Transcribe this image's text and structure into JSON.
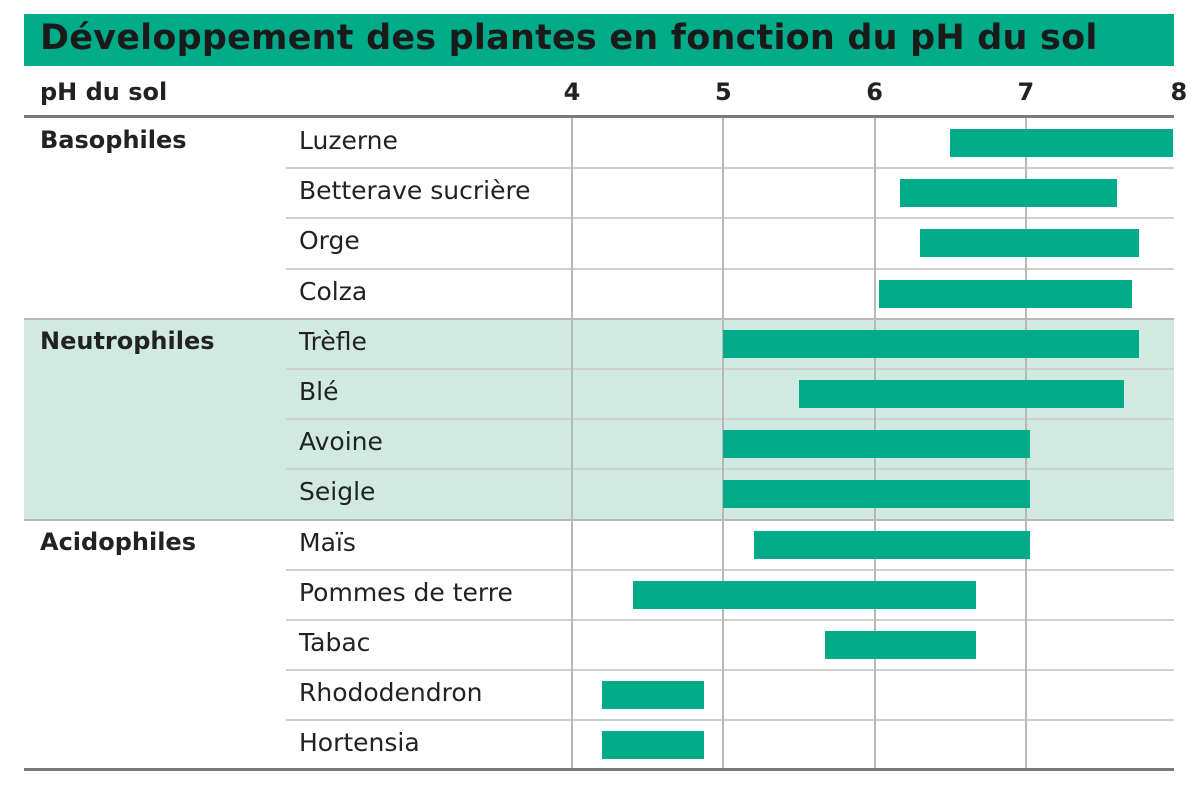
{
  "colors": {
    "accent": "#00ab8a",
    "neutral_band": "#d1eae1"
  },
  "chart_data": {
    "type": "range-bar",
    "title": "Développement des plantes en fonction du pH du sol",
    "xlabel": "pH du sol",
    "ticks": [
      "4",
      "5",
      "6",
      "7",
      "8"
    ],
    "xlim": [
      4,
      8
    ],
    "groups": [
      {
        "name": "Basophiles",
        "items": [
          {
            "plant": "Luzerne",
            "min": 6.5,
            "max": 8.0
          },
          {
            "plant": "Betterave sucrière",
            "min": 6.17,
            "max": 7.6
          },
          {
            "plant": "Orge",
            "min": 6.3,
            "max": 7.75
          },
          {
            "plant": "Colza",
            "min": 6.03,
            "max": 7.7
          }
        ]
      },
      {
        "name": "Neutrophiles",
        "items": [
          {
            "plant": "Trèfle",
            "min": 5.0,
            "max": 7.75
          },
          {
            "plant": "Blé",
            "min": 5.5,
            "max": 7.65
          },
          {
            "plant": "Avoine",
            "min": 5.0,
            "max": 7.03
          },
          {
            "plant": "Seigle",
            "min": 5.0,
            "max": 7.03
          }
        ]
      },
      {
        "name": "Acidophiles",
        "items": [
          {
            "plant": "Maïs",
            "min": 5.2,
            "max": 7.03
          },
          {
            "plant": "Pommes de terre",
            "min": 4.4,
            "max": 6.67
          },
          {
            "plant": "Tabac",
            "min": 5.67,
            "max": 6.67
          },
          {
            "plant": "Rhododendron",
            "min": 4.2,
            "max": 4.87
          },
          {
            "plant": "Hortensia",
            "min": 4.2,
            "max": 4.87
          }
        ]
      }
    ]
  }
}
